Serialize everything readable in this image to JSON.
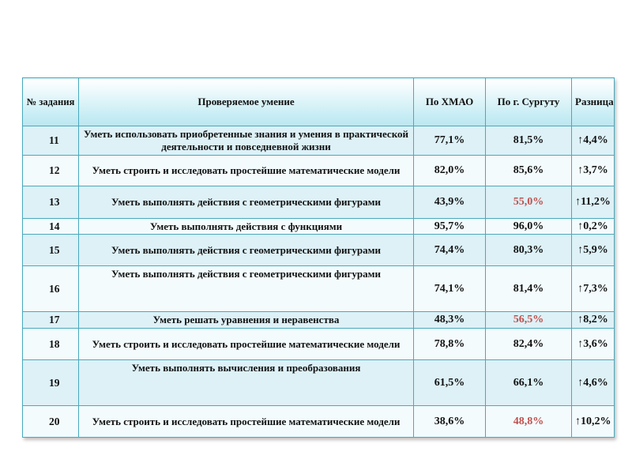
{
  "headers": {
    "num": "№ задания",
    "skill": "Проверяемое умение",
    "hmao": "По ХМАО",
    "surgut": "По г. Сургуту",
    "diff": "Разница"
  },
  "rows": [
    {
      "num": "11",
      "skill": "Уметь использовать приобретенные знания и умения в практической деятельности и повседневной жизни",
      "hmao": "77,1%",
      "surgut": "81,5%",
      "diff": "↑4,4%",
      "surgut_red": false
    },
    {
      "num": "12",
      "skill": "Уметь строить и исследовать простейшие математические модели",
      "hmao": "82,0%",
      "surgut": "85,6%",
      "diff": "↑3,7%",
      "surgut_red": false
    },
    {
      "num": "13",
      "skill": "Уметь выполнять действия с геометрическими фигурами",
      "hmao": "43,9%",
      "surgut": "55,0%",
      "diff": "↑11,2%",
      "surgut_red": true
    },
    {
      "num": "14",
      "skill": "Уметь выполнять действия с функциями",
      "hmao": "95,7%",
      "surgut": "96,0%",
      "diff": "↑0,2%",
      "surgut_red": false
    },
    {
      "num": "15",
      "skill": "Уметь выполнять действия с геометрическими фигурами",
      "hmao": "74,4%",
      "surgut": "80,3%",
      "diff": "↑5,9%",
      "surgut_red": false
    },
    {
      "num": "16",
      "skill": "Уметь выполнять действия с геометрическими фигурами",
      "hmao": "74,1%",
      "surgut": "81,4%",
      "diff": "↑7,3%",
      "surgut_red": false
    },
    {
      "num": "17",
      "skill": "Уметь решать уравнения и неравенства",
      "hmao": "48,3%",
      "surgut": "56,5%",
      "diff": "↑8,2%",
      "surgut_red": true
    },
    {
      "num": "18",
      "skill": "Уметь строить и исследовать простейшие математические модели",
      "hmao": "78,8%",
      "surgut": "82,4%",
      "diff": "↑3,6%",
      "surgut_red": false
    },
    {
      "num": "19",
      "skill": "Уметь выполнять вычисления и преобразования",
      "hmao": "61,5%",
      "surgut": "66,1%",
      "diff": "↑4,6%",
      "surgut_red": false
    },
    {
      "num": "20",
      "skill": "Уметь строить и исследовать простейшие математические модели",
      "hmao": "38,6%",
      "surgut": "48,8%",
      "diff": "↑10,2%",
      "surgut_red": true
    }
  ],
  "colors": {
    "border": "#49a9bd",
    "accent_red": "#c0504d",
    "row_a": "#ddf1f7",
    "row_b": "#f3fbfd"
  }
}
